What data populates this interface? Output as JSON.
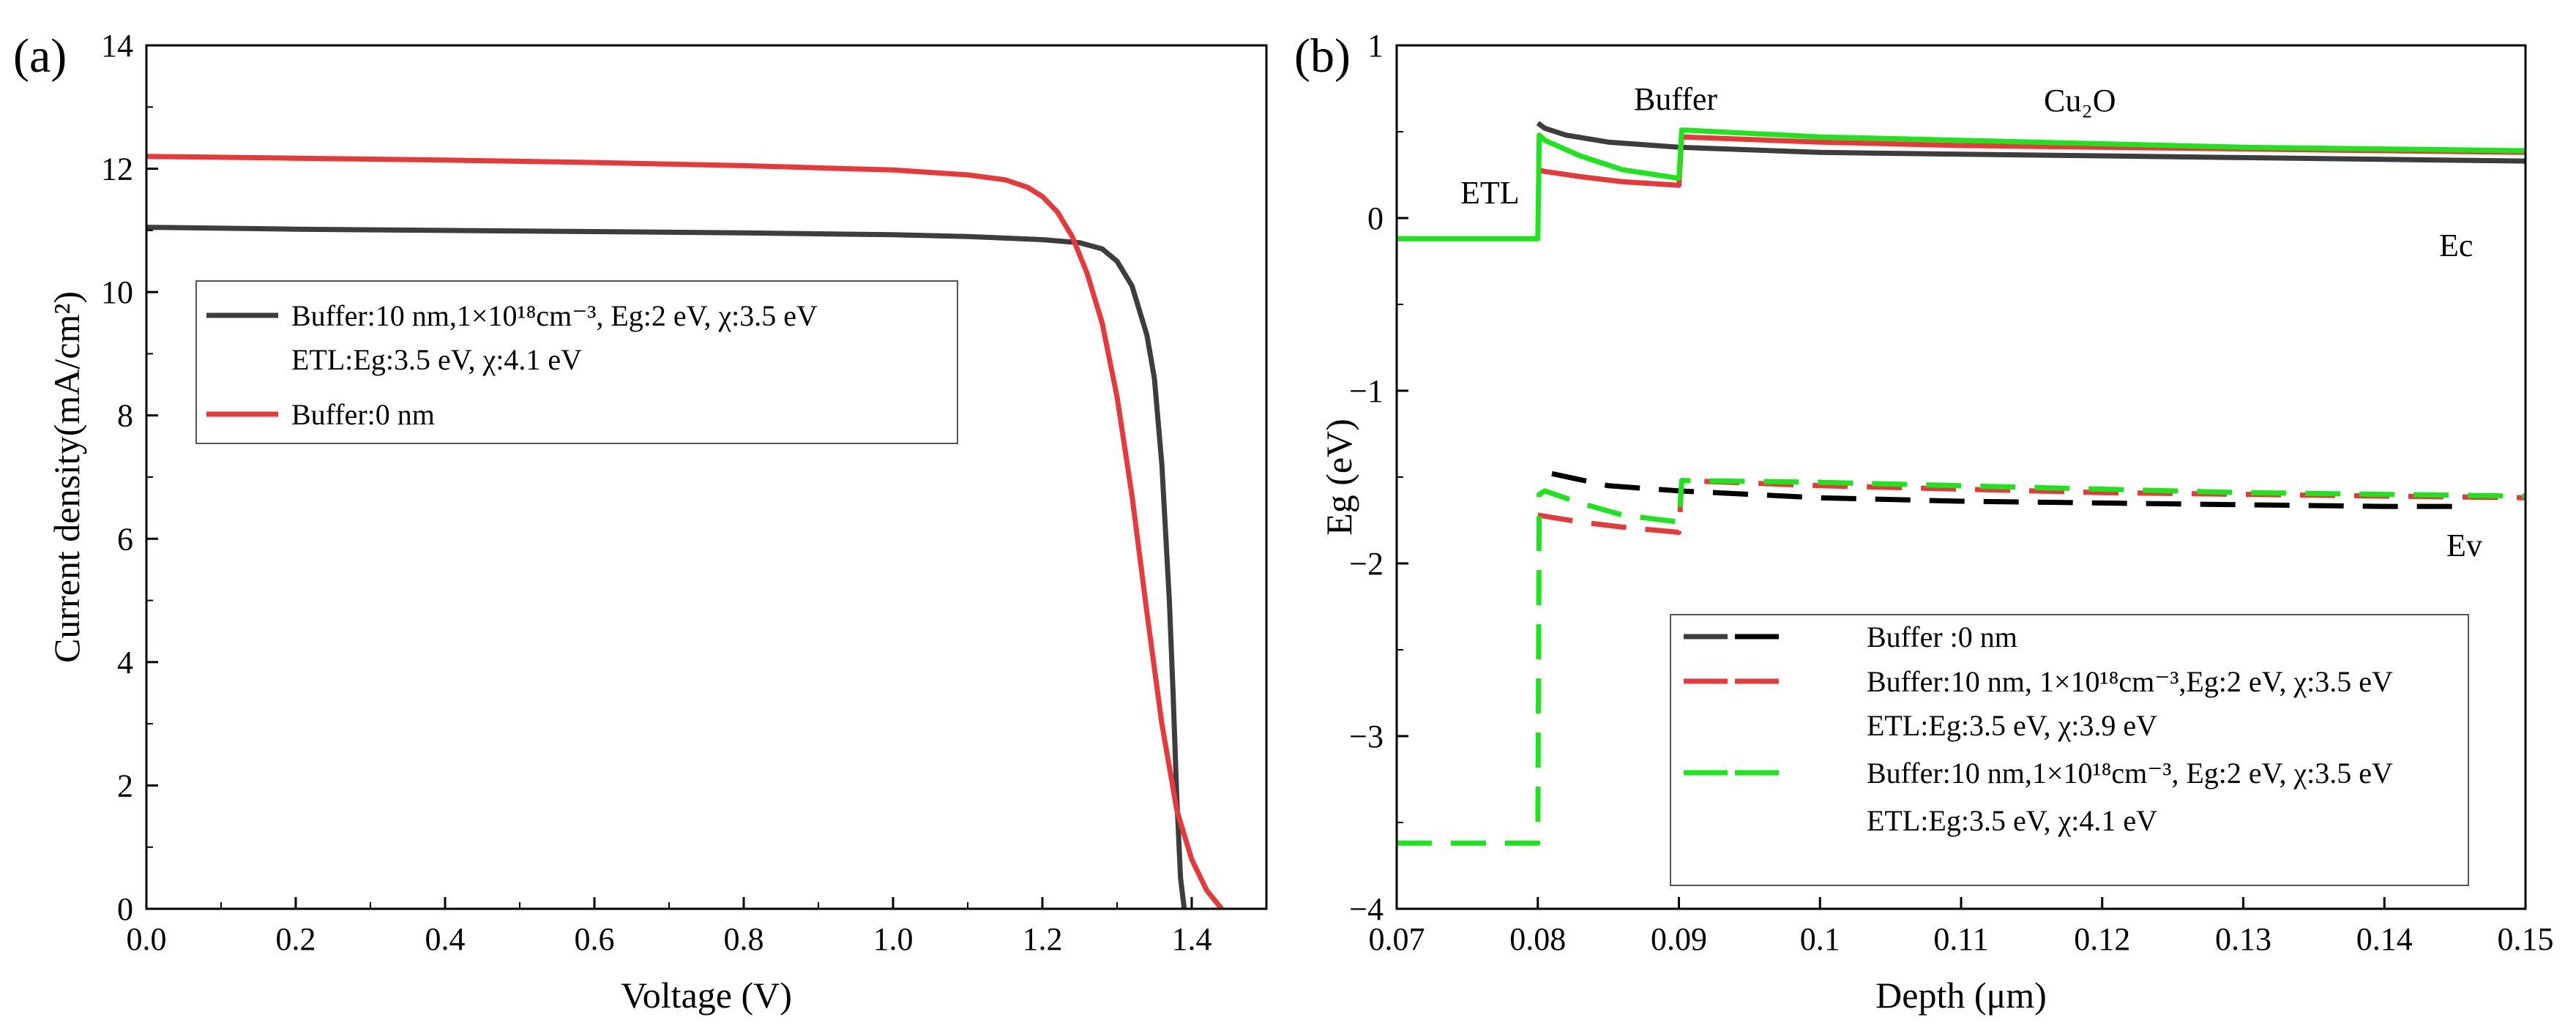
{
  "chart_data": [
    {
      "type": "line",
      "panel_label": "(a)",
      "xlabel": "Voltage (V)",
      "ylabel": "Current density(mA/cm²)",
      "xlim": [
        0,
        1.5
      ],
      "ylim": [
        0,
        14
      ],
      "xticks": [
        "0.0",
        "0.2",
        "0.4",
        "0.6",
        "0.8",
        "1.0",
        "1.2",
        "1.4"
      ],
      "yticks": [
        "0",
        "2",
        "4",
        "6",
        "8",
        "10",
        "12",
        "14"
      ],
      "legend_position": "center-left",
      "legend_entries": [
        {
          "lines": [
            "Buffer:10 nm,1×10¹⁸cm⁻³, Eg:2 eV, χ:3.5 eV",
            "ETL:Eg:3.5 eV, χ:4.1 eV"
          ]
        },
        {
          "lines": [
            "Buffer:0 nm"
          ]
        }
      ],
      "series": [
        {
          "name": "Buffer:10 nm,1×10¹⁸cm⁻³, Eg:2 eV, χ:3.5 eV; ETL:Eg:3.5 eV, χ:4.1 eV",
          "color": "#3d3d3d",
          "x": [
            0,
            0.2,
            0.4,
            0.6,
            0.8,
            1.0,
            1.1,
            1.2,
            1.25,
            1.28,
            1.3,
            1.32,
            1.34,
            1.35,
            1.36,
            1.37,
            1.375,
            1.38,
            1.385,
            1.39
          ],
          "y": [
            11.05,
            11.02,
            11.0,
            10.98,
            10.96,
            10.93,
            10.9,
            10.85,
            10.8,
            10.7,
            10.5,
            10.1,
            9.3,
            8.6,
            7.2,
            5.0,
            3.5,
            1.8,
            0.5,
            0
          ]
        },
        {
          "name": "Buffer:0 nm",
          "color": "#e8393a",
          "x": [
            0,
            0.2,
            0.4,
            0.6,
            0.8,
            1.0,
            1.1,
            1.15,
            1.18,
            1.2,
            1.22,
            1.24,
            1.26,
            1.28,
            1.3,
            1.32,
            1.34,
            1.36,
            1.38,
            1.4,
            1.42,
            1.44
          ],
          "y": [
            12.2,
            12.17,
            12.14,
            12.1,
            12.05,
            11.98,
            11.9,
            11.82,
            11.7,
            11.55,
            11.3,
            10.9,
            10.3,
            9.5,
            8.3,
            6.7,
            4.8,
            3.0,
            1.6,
            0.8,
            0.3,
            0
          ]
        }
      ]
    },
    {
      "type": "line",
      "panel_label": "(b)",
      "xlabel": "Depth (μm)",
      "ylabel": "Eg (eV)",
      "xlim": [
        0.07,
        0.15
      ],
      "ylim": [
        -4,
        1
      ],
      "xticks": [
        "0.07",
        "0.08",
        "0.09",
        "0.1",
        "0.11",
        "0.12",
        "0.13",
        "0.14",
        "0.15"
      ],
      "yticks": [
        "1",
        "0",
        "−1",
        "−2",
        "−3",
        "−4"
      ],
      "annotations": {
        "etl": "ETL",
        "buffer": "Buffer",
        "cu2o": "Cu₂O",
        "ec": "Ec",
        "ev": "Ev"
      },
      "legend_position": "bottom-right",
      "legend_entries": [
        {
          "lines": [
            "Buffer :0 nm"
          ]
        },
        {
          "lines": [
            "Buffer:10 nm, 1×10¹⁸cm⁻³,Eg:2 eV, χ:3.5 eV",
            "ETL:Eg:3.5 eV, χ:3.9 eV"
          ]
        },
        {
          "lines": [
            "Buffer:10 nm,1×10¹⁸cm⁻³, Eg:2 eV, χ:3.5 eV",
            "ETL:Eg:3.5 eV, χ:4.1 eV"
          ]
        }
      ],
      "series": [
        {
          "name": "Ec — Buffer :0 nm",
          "color": "#3d3d3d",
          "style": "solid",
          "x": [
            0.08,
            0.0805,
            0.082,
            0.085,
            0.09,
            0.1,
            0.11,
            0.12,
            0.13,
            0.14,
            0.15
          ],
          "y": [
            0.55,
            0.52,
            0.48,
            0.44,
            0.41,
            0.38,
            0.37,
            0.36,
            0.35,
            0.34,
            0.33
          ]
        },
        {
          "name": "Ev — Buffer :0 nm",
          "color": "#000000",
          "style": "dashed",
          "x": [
            0.081,
            0.085,
            0.09,
            0.1,
            0.11,
            0.12,
            0.13,
            0.14,
            0.145
          ],
          "y": [
            -1.48,
            -1.55,
            -1.58,
            -1.62,
            -1.64,
            -1.65,
            -1.66,
            -1.67,
            -1.67
          ]
        },
        {
          "name": "Ec — Buffer:10 nm, ETL χ:3.9 eV",
          "color": "#e8393a",
          "style": "solid",
          "x": [
            0.08,
            0.0805,
            0.083,
            0.086,
            0.09,
            0.0902,
            0.1,
            0.11,
            0.12,
            0.13,
            0.14,
            0.15
          ],
          "y": [
            0.28,
            0.27,
            0.24,
            0.21,
            0.19,
            0.47,
            0.44,
            0.42,
            0.41,
            0.4,
            0.39,
            0.38
          ]
        },
        {
          "name": "Ev — Buffer:10 nm, ETL χ:3.9 eV",
          "color": "#e8393a",
          "style": "dashed",
          "x": [
            0.08,
            0.083,
            0.086,
            0.09,
            0.0902,
            0.1,
            0.11,
            0.12,
            0.13,
            0.14,
            0.15
          ],
          "y": [
            -1.72,
            -1.76,
            -1.79,
            -1.82,
            -1.52,
            -1.55,
            -1.57,
            -1.59,
            -1.6,
            -1.61,
            -1.62
          ]
        },
        {
          "name": "Ec — Buffer:10 nm, ETL χ:4.1 eV",
          "color": "#1ee41e",
          "style": "solid",
          "x": [
            0.07,
            0.08,
            0.0801,
            0.0805,
            0.083,
            0.086,
            0.09,
            0.0902,
            0.1,
            0.11,
            0.12,
            0.13,
            0.14,
            0.15
          ],
          "y": [
            -0.12,
            -0.12,
            0.48,
            0.45,
            0.36,
            0.28,
            0.23,
            0.51,
            0.47,
            0.45,
            0.43,
            0.41,
            0.4,
            0.39
          ]
        },
        {
          "name": "Ev — Buffer:10 nm, ETL χ:4.1 eV",
          "color": "#1ee41e",
          "style": "dashed",
          "x": [
            0.07,
            0.08,
            0.0801,
            0.0805,
            0.083,
            0.086,
            0.09,
            0.0902,
            0.1,
            0.11,
            0.12,
            0.13,
            0.14,
            0.15
          ],
          "y": [
            -3.62,
            -3.62,
            -1.6,
            -1.58,
            -1.65,
            -1.72,
            -1.76,
            -1.52,
            -1.53,
            -1.55,
            -1.57,
            -1.59,
            -1.6,
            -1.61
          ]
        }
      ]
    }
  ]
}
